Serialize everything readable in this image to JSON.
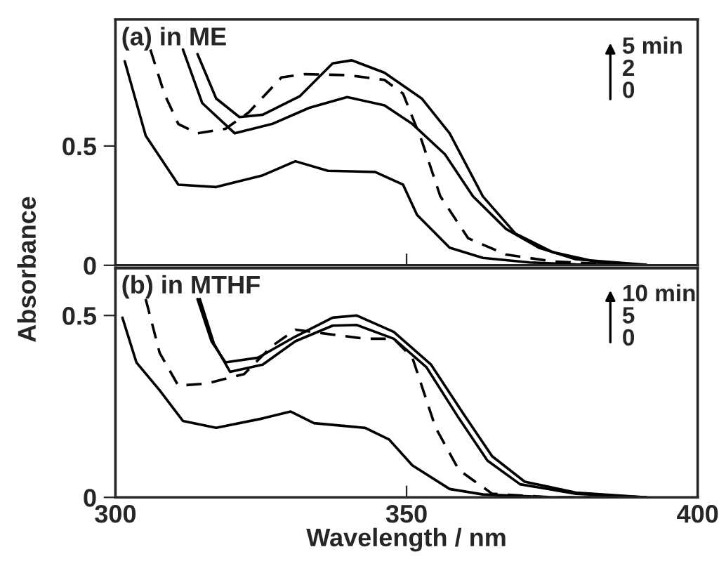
{
  "chart_data": [
    {
      "type": "line",
      "title": "(a) in ME",
      "ylabel": "Absorbance",
      "xlim": [
        300,
        400
      ],
      "xticks": [
        {
          "value": 350,
          "label": null
        }
      ],
      "ylim": [
        0,
        1.03
      ],
      "yticks": [
        0,
        {
          "value": 0.5,
          "label": "0.5"
        }
      ],
      "tick_labels": "y",
      "grid": false,
      "legend": false,
      "annotations": [
        "5 min",
        "2",
        "0"
      ],
      "series": [
        {
          "color": "#000000",
          "line_style": "solid",
          "x": [
            301.6,
            305.2,
            310.8,
            317.3,
            325.3,
            330.9,
            336.5,
            344.6,
            349.4,
            351.8,
            357.4,
            363.1,
            371.1,
            379.1,
            391.2
          ],
          "values": [
            0.855,
            0.543,
            0.338,
            0.328,
            0.377,
            0.436,
            0.396,
            0.391,
            0.338,
            0.211,
            0.074,
            0.031,
            0.012,
            0.004,
            0
          ]
        },
        {
          "color": "#000000",
          "line_style": "dashed",
          "x": [
            306,
            308.4,
            310.8,
            314.1,
            318.9,
            322.9,
            328.5,
            332.5,
            339.8,
            346.2,
            349.4,
            352.6,
            355.8,
            360.6,
            367.1,
            375.1,
            387.1
          ],
          "values": [
            0.904,
            0.719,
            0.592,
            0.553,
            0.572,
            0.641,
            0.787,
            0.801,
            0.797,
            0.777,
            0.719,
            0.523,
            0.289,
            0.113,
            0.045,
            0.016,
            0.002
          ]
        },
        {
          "color": "#000000",
          "line_style": "solid",
          "x": [
            311.6,
            314.9,
            320.5,
            326.9,
            333.3,
            339.8,
            346.2,
            351,
            356.6,
            361.4,
            367.1,
            372.7,
            379.1,
            391.2
          ],
          "values": [
            0.904,
            0.68,
            0.553,
            0.592,
            0.66,
            0.705,
            0.67,
            0.592,
            0.465,
            0.289,
            0.152,
            0.074,
            0.025,
            0.002
          ]
        },
        {
          "color": "#000000",
          "line_style": "solid",
          "x": [
            314.1,
            317.3,
            321.3,
            325.3,
            331.7,
            337.3,
            340.6,
            346.2,
            352.6,
            357.4,
            363.1,
            368.7,
            375.1,
            383.1,
            391.2
          ],
          "values": [
            0.885,
            0.699,
            0.621,
            0.631,
            0.709,
            0.846,
            0.859,
            0.807,
            0.699,
            0.553,
            0.289,
            0.133,
            0.055,
            0.012,
            0
          ]
        }
      ]
    },
    {
      "type": "line",
      "title": "(b) in MTHF",
      "xlabel": "Wavelength / nm",
      "xlim": [
        300,
        400
      ],
      "xticks": [
        300,
        350,
        400
      ],
      "ylim": [
        0,
        0.63
      ],
      "yticks": [
        0,
        {
          "value": 0.5,
          "label": "0.5"
        }
      ],
      "grid": false,
      "legend": false,
      "annotations": [
        "10 min",
        "5",
        "0"
      ],
      "series": [
        {
          "color": "#000000",
          "line_style": "solid",
          "x": [
            301.2,
            303.6,
            307.6,
            311.6,
            317.3,
            325.3,
            330.1,
            334.1,
            342.9,
            347,
            351,
            357.4,
            363.1,
            375.1,
            391.2
          ],
          "values": [
            0.494,
            0.371,
            0.294,
            0.21,
            0.191,
            0.217,
            0.236,
            0.204,
            0.191,
            0.159,
            0.088,
            0.023,
            0.008,
            0,
            0
          ]
        },
        {
          "color": "#000000",
          "line_style": "dashed",
          "x": [
            305.2,
            307.6,
            310.8,
            315.7,
            322.1,
            326.9,
            330.9,
            336.5,
            342.9,
            347.8,
            351,
            355,
            359,
            364.7,
            375.1,
            387.1
          ],
          "values": [
            0.545,
            0.397,
            0.307,
            0.313,
            0.339,
            0.416,
            0.461,
            0.449,
            0.436,
            0.436,
            0.384,
            0.191,
            0.075,
            0.01,
            0,
            0
          ]
        },
        {
          "color": "#000000",
          "line_style": "solid",
          "x": [
            314.5,
            316.9,
            319.7,
            325.3,
            330.9,
            337.3,
            341.4,
            347.8,
            353.4,
            359,
            363.9,
            369.5,
            379.1,
            391.2
          ],
          "values": [
            0.545,
            0.423,
            0.345,
            0.365,
            0.429,
            0.472,
            0.474,
            0.436,
            0.358,
            0.217,
            0.101,
            0.036,
            0.01,
            0
          ]
        },
        {
          "color": "#000000",
          "line_style": "solid",
          "x": [
            314.1,
            316.5,
            318.9,
            324.5,
            330.9,
            337.3,
            341.4,
            347.8,
            354.2,
            359.8,
            364.7,
            370.3,
            379.1,
            391.2
          ],
          "values": [
            0.545,
            0.429,
            0.371,
            0.384,
            0.442,
            0.494,
            0.5,
            0.455,
            0.365,
            0.229,
            0.113,
            0.043,
            0.013,
            0
          ]
        }
      ]
    }
  ]
}
